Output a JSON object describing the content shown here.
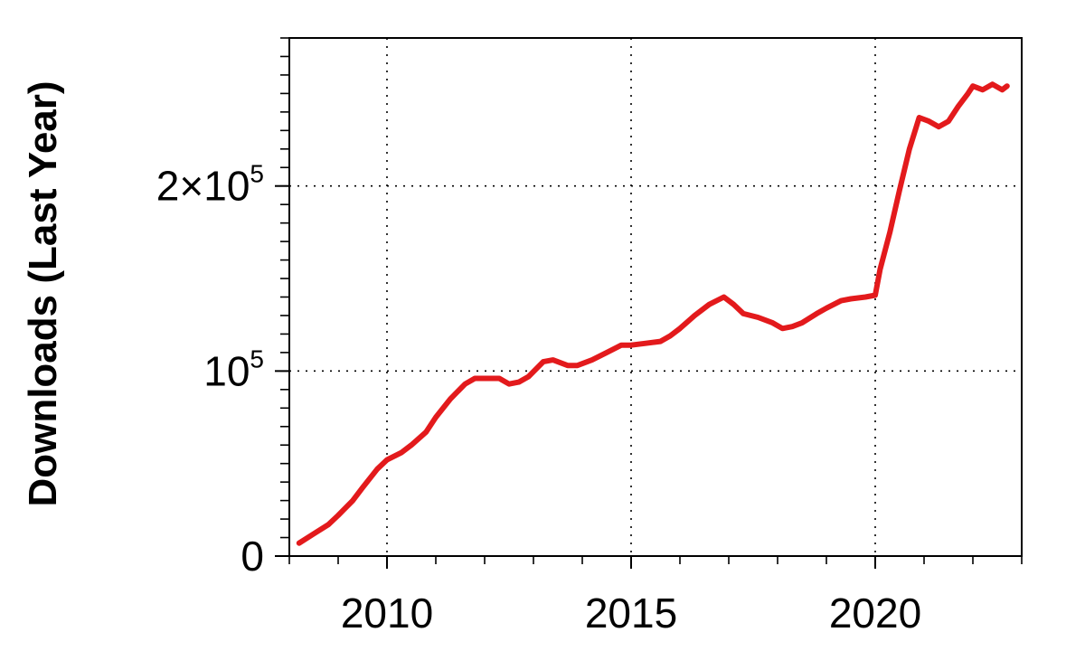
{
  "chart_data": {
    "type": "line",
    "title": "",
    "xlabel": "",
    "ylabel": "Downloads (Last Year)",
    "xlim": [
      2008,
      2023
    ],
    "ylim": [
      0,
      280000
    ],
    "x_ticks": [
      {
        "value": 2010,
        "label": "2010"
      },
      {
        "value": 2015,
        "label": "2015"
      },
      {
        "value": 2020,
        "label": "2020"
      }
    ],
    "x_minor_step": 1,
    "y_ticks": [
      {
        "value": 0,
        "base": "0",
        "sup": ""
      },
      {
        "value": 100000,
        "base": "10",
        "sup": "5"
      },
      {
        "value": 200000,
        "base": "2×10",
        "sup": "5"
      }
    ],
    "y_minor_step": 10000,
    "grid": "dotted, at major ticks",
    "legend": "none",
    "line_color": "#e31a1c",
    "series": [
      {
        "name": "",
        "x": [
          2008.2,
          2008.5,
          2008.8,
          2009.0,
          2009.3,
          2009.5,
          2009.8,
          2010.0,
          2010.3,
          2010.5,
          2010.8,
          2011.0,
          2011.3,
          2011.6,
          2011.8,
          2012.0,
          2012.3,
          2012.5,
          2012.7,
          2012.9,
          2013.2,
          2013.4,
          2013.7,
          2013.9,
          2014.2,
          2014.5,
          2014.8,
          2015.0,
          2015.3,
          2015.6,
          2015.8,
          2016.0,
          2016.3,
          2016.6,
          2016.9,
          2017.1,
          2017.3,
          2017.6,
          2017.9,
          2018.1,
          2018.3,
          2018.5,
          2018.8,
          2019.0,
          2019.3,
          2019.5,
          2019.8,
          2020.0,
          2020.1,
          2020.3,
          2020.5,
          2020.7,
          2020.9,
          2021.1,
          2021.3,
          2021.5,
          2021.7,
          2021.9,
          2022.0,
          2022.2,
          2022.4,
          2022.6,
          2022.7
        ],
        "y": [
          7000,
          12000,
          17000,
          22000,
          30000,
          37000,
          47000,
          52000,
          56000,
          60000,
          67000,
          75000,
          85000,
          93000,
          96000,
          96000,
          96000,
          93000,
          94000,
          97000,
          105000,
          106000,
          103000,
          103000,
          106000,
          110000,
          114000,
          114000,
          115000,
          116000,
          119000,
          123000,
          130000,
          136000,
          140000,
          136000,
          131000,
          129000,
          126000,
          123000,
          124000,
          126000,
          131000,
          134000,
          138000,
          139000,
          140000,
          141000,
          155000,
          175000,
          198000,
          220000,
          237000,
          235000,
          232000,
          235000,
          243000,
          250000,
          254000,
          252000,
          255000,
          252000,
          254000
        ]
      }
    ]
  }
}
